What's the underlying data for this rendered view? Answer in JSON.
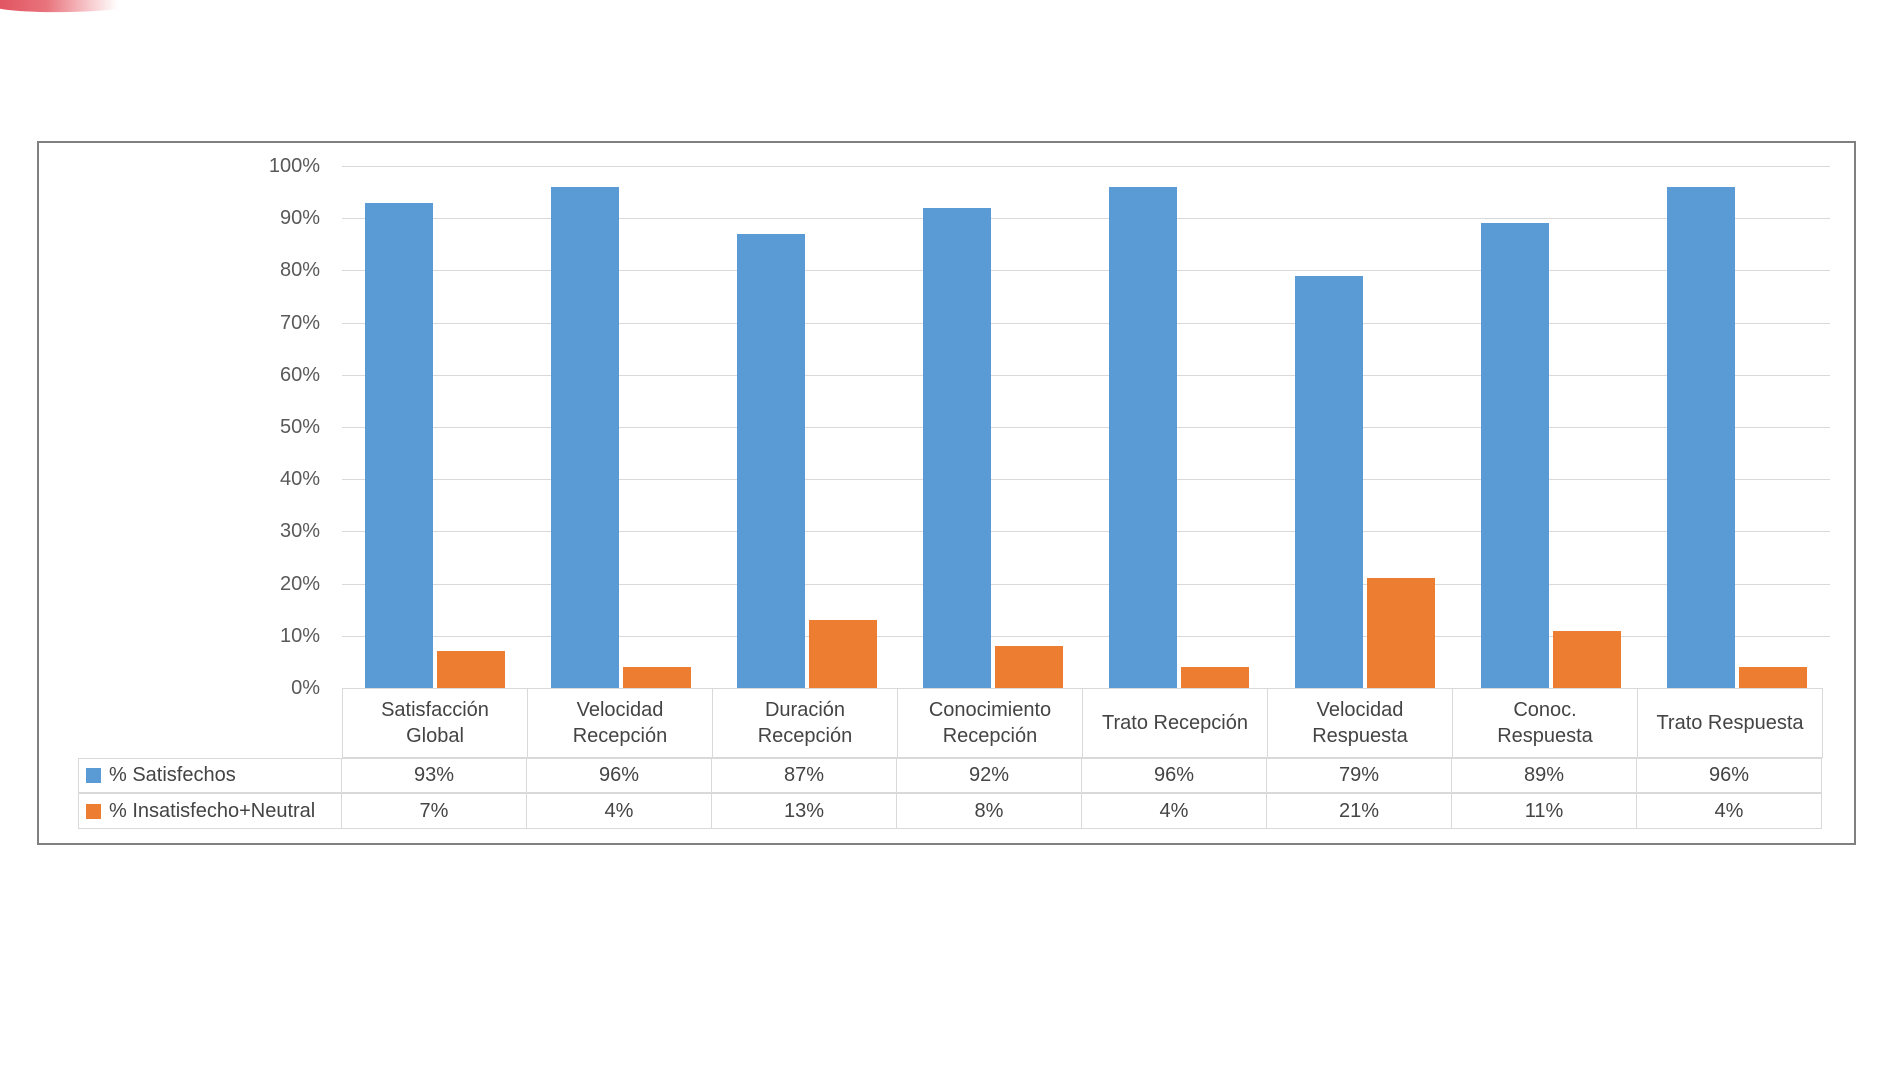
{
  "decoration": {
    "swoosh_color": "#e04f5b"
  },
  "chart_data": {
    "type": "bar",
    "title": "",
    "xlabel": "",
    "ylabel": "",
    "categories": [
      "Satisfacción Global",
      "Velocidad Recepción",
      "Duración Recepción",
      "Conocimiento Recepción",
      "Trato Recepción",
      "Velocidad Respuesta",
      "Conoc. Respuesta",
      "Trato Respuesta"
    ],
    "series": [
      {
        "name": "% Satisfechos",
        "color": "#5B9BD5",
        "values": [
          93,
          96,
          87,
          92,
          96,
          79,
          89,
          96
        ]
      },
      {
        "name": "% Insatisfecho+Neutral",
        "color": "#ED7D31",
        "values": [
          7,
          4,
          13,
          8,
          4,
          21,
          11,
          4
        ]
      }
    ],
    "value_suffix": "%",
    "ylim": [
      0,
      100
    ],
    "ytick_step": 10,
    "ytick_suffix": "%",
    "grid": true,
    "legend_position": "table-left",
    "colors": {
      "gridline": "#D9D9D9",
      "cell_border": "#D9D9D9",
      "frame_border": "#808080",
      "axis_text": "#595959",
      "table_text": "#444444",
      "background": "#ffffff"
    }
  }
}
